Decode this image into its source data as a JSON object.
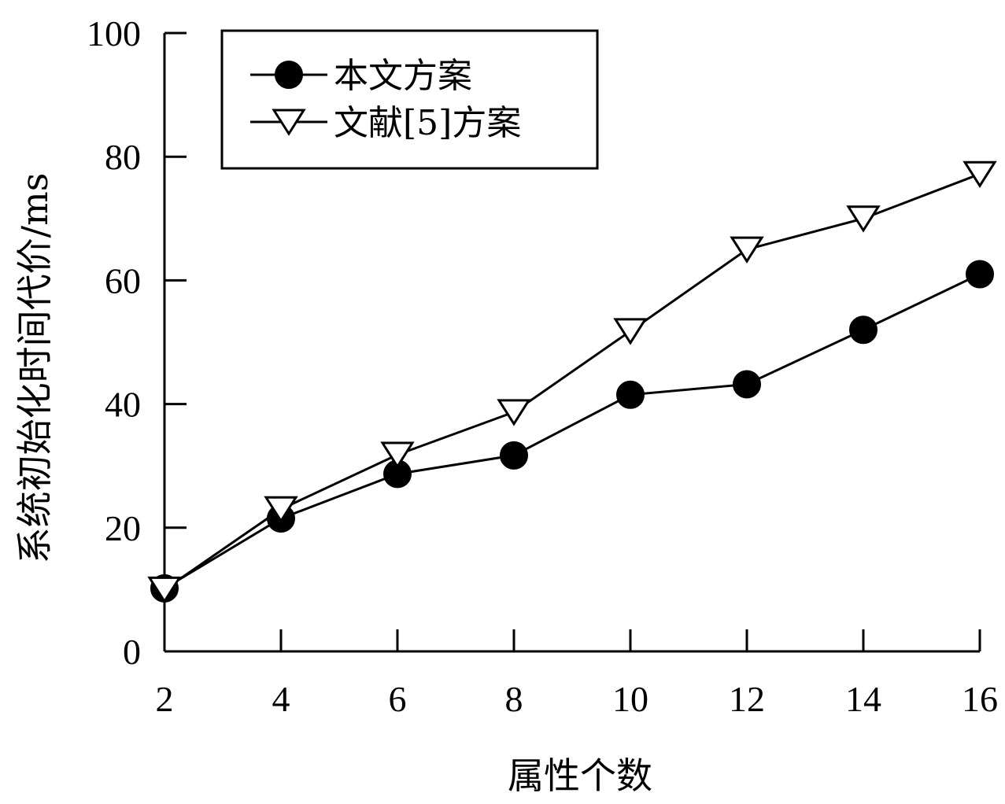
{
  "chart_data": {
    "type": "line",
    "title": "",
    "xlabel": "属性个数",
    "ylabel": "系统初始化时间代价/ms",
    "x": [
      2,
      4,
      6,
      8,
      10,
      12,
      14,
      16
    ],
    "xlim": [
      2,
      16
    ],
    "ylim": [
      0,
      100
    ],
    "xticks": [
      2,
      4,
      6,
      8,
      10,
      12,
      14,
      16
    ],
    "yticks": [
      0,
      20,
      40,
      60,
      80,
      100
    ],
    "grid": false,
    "legend_position": "top-left",
    "series": [
      {
        "name": "本文方案",
        "marker": "filled-circle",
        "color": "#000000",
        "values": [
          10.2,
          21.5,
          28.7,
          31.7,
          41.5,
          43.2,
          52.0,
          61.0
        ]
      },
      {
        "name": "文献[5]方案",
        "marker": "hollow-down-triangle",
        "color": "#000000",
        "values": [
          10.0,
          23.0,
          31.8,
          38.7,
          51.8,
          65.0,
          70.0,
          77.2
        ]
      }
    ]
  }
}
